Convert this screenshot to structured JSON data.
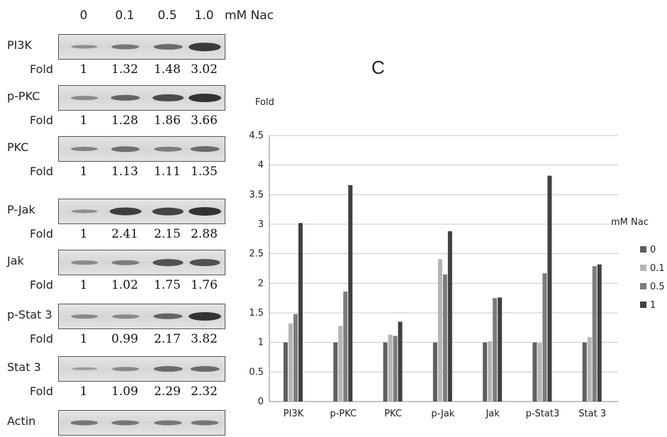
{
  "panel_letter": "C",
  "blot": {
    "lane_headers": [
      "0",
      "0.1",
      "0.5",
      "1.0"
    ],
    "unit_label": "mM Nac",
    "fold_label": "Fold",
    "rows": [
      {
        "label": "PI3K",
        "folds": [
          "1",
          "1.32",
          "1.48",
          "3.02"
        ],
        "intensity": [
          0.25,
          0.45,
          0.55,
          0.95
        ]
      },
      {
        "label": "p-PKC",
        "folds": [
          "1",
          "1.28",
          "1.86",
          "3.66"
        ],
        "intensity": [
          0.3,
          0.6,
          0.8,
          1.0
        ]
      },
      {
        "label": "PKC",
        "folds": [
          "1",
          "1.13",
          "1.11",
          "1.35"
        ],
        "intensity": [
          0.35,
          0.5,
          0.4,
          0.55
        ]
      },
      {
        "label": "P-Jak",
        "folds": [
          "1",
          "2.41",
          "2.15",
          "2.88"
        ],
        "intensity": [
          0.25,
          0.9,
          0.85,
          1.0
        ]
      },
      {
        "label": "Jak",
        "folds": [
          "1",
          "1.02",
          "1.75",
          "1.76"
        ],
        "intensity": [
          0.3,
          0.4,
          0.75,
          0.75
        ]
      },
      {
        "label": "p-Stat 3",
        "folds": [
          "1",
          "0.99",
          "2.17",
          "3.82"
        ],
        "intensity": [
          0.3,
          0.3,
          0.6,
          1.0
        ]
      },
      {
        "label": "Stat 3",
        "folds": [
          "1",
          "1.09",
          "2.29",
          "2.32"
        ],
        "intensity": [
          0.15,
          0.3,
          0.55,
          0.55
        ]
      },
      {
        "label": "Actin",
        "folds": [],
        "intensity": [
          0.45,
          0.45,
          0.45,
          0.45
        ]
      }
    ]
  },
  "chart_data": {
    "type": "bar",
    "ylabel": "Fold",
    "xlabel": "",
    "ylim": [
      0,
      4.5
    ],
    "yticks": [
      "0",
      "0.5",
      "1",
      "1.5",
      "2",
      "2.5",
      "3",
      "3.5",
      "4",
      "4.5"
    ],
    "categories": [
      "PI3K",
      "p-PKC",
      "PKC",
      "p-Jak",
      "Jak",
      "p-Stat3",
      "Stat 3"
    ],
    "legend_title": "mM Nac",
    "legend_position": "right",
    "grid": "horizontal",
    "series": [
      {
        "name": "0",
        "color": "#5f5f5f",
        "values": [
          1,
          1,
          1,
          1,
          1,
          1,
          1
        ]
      },
      {
        "name": "0.1",
        "color": "#b5b5b5",
        "values": [
          1.32,
          1.28,
          1.13,
          2.41,
          1.02,
          0.99,
          1.09
        ]
      },
      {
        "name": "0.5",
        "color": "#7c7c7c",
        "values": [
          1.48,
          1.86,
          1.11,
          2.15,
          1.75,
          2.17,
          2.29
        ]
      },
      {
        "name": "1",
        "color": "#404040",
        "values": [
          3.02,
          3.66,
          1.35,
          2.88,
          1.76,
          3.82,
          2.32
        ]
      }
    ]
  }
}
